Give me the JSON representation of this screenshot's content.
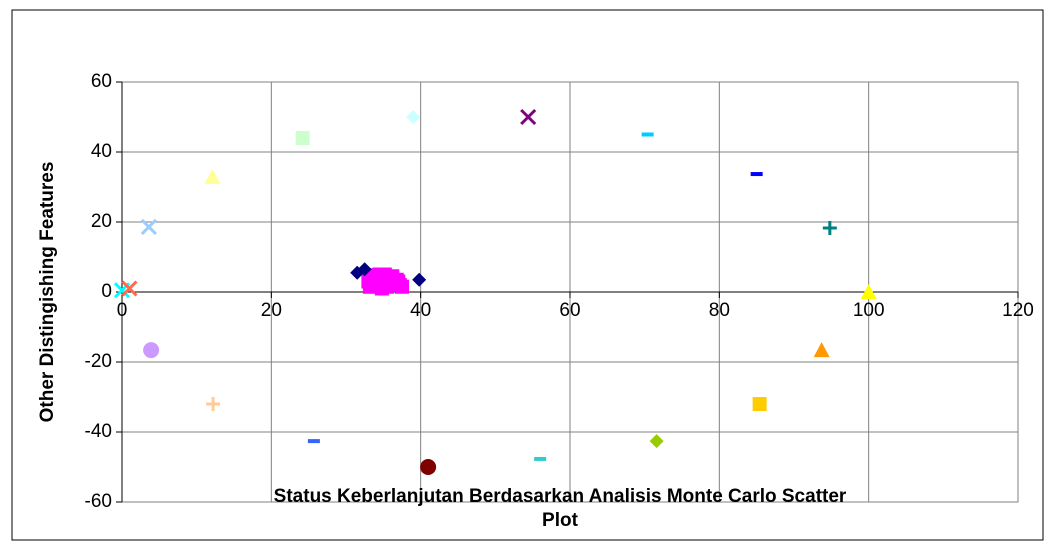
{
  "chart_data": {
    "type": "scatter",
    "x_label": "Status Keberlanjutan Berdasarkan Analisis Monte Carlo Scatter Plot",
    "y_label": "Other Distingishing Features",
    "xlim": [
      0,
      120
    ],
    "xticks": [
      0,
      20,
      40,
      60,
      80,
      100,
      120
    ],
    "ylim": [
      -60,
      60
    ],
    "yticks": [
      -60,
      -40,
      -20,
      0,
      20,
      40,
      60
    ],
    "grid": true,
    "series": [
      {
        "color": "#ff00ff",
        "marker": "square",
        "x": [
          33,
          33.5,
          34,
          34.5,
          35,
          35.5,
          36,
          36.5,
          37,
          37.5,
          33.2,
          34.2,
          35.2,
          36.2,
          37.2,
          34.8,
          35.8,
          36.8,
          33.8,
          35.4
        ],
        "y": [
          3,
          4.5,
          2,
          5,
          3.5,
          1.5,
          4,
          2.5,
          3,
          1.5,
          1.5,
          3.5,
          5,
          4.5,
          2,
          1,
          2.5,
          3.5,
          4.8,
          3
        ]
      },
      {
        "color": "#000080",
        "marker": "diamond",
        "x": [
          31.5,
          32.5,
          39.8
        ],
        "y": [
          5.5,
          6.5,
          3.5
        ]
      },
      {
        "color": "#00ffff",
        "marker": "x",
        "x": [
          0
        ],
        "y": [
          0.5
        ]
      },
      {
        "color": "#ff6a4d",
        "marker": "x",
        "x": [
          1
        ],
        "y": [
          1
        ]
      },
      {
        "color": "#99ccff",
        "marker": "x",
        "x": [
          3.6
        ],
        "y": [
          18.6
        ]
      },
      {
        "color": "#cc99ff",
        "marker": "circle",
        "x": [
          3.9
        ],
        "y": [
          -16.6
        ]
      },
      {
        "color": "#ffff99",
        "marker": "triangle",
        "x": [
          12.1
        ],
        "y": [
          32.9
        ]
      },
      {
        "color": "#ccffcc",
        "marker": "square",
        "x": [
          24.2
        ],
        "y": [
          44
        ]
      },
      {
        "color": "#ccffff",
        "marker": "diamond",
        "x": [
          39
        ],
        "y": [
          50
        ]
      },
      {
        "color": "#800080",
        "marker": "x",
        "x": [
          54.4
        ],
        "y": [
          50
        ]
      },
      {
        "color": "#00ccff",
        "marker": "dash",
        "x": [
          70.4
        ],
        "y": [
          45
        ]
      },
      {
        "color": "#0000ff",
        "marker": "dash",
        "x": [
          85
        ],
        "y": [
          33.7
        ]
      },
      {
        "color": "#008080",
        "marker": "plus",
        "x": [
          94.8
        ],
        "y": [
          18.3
        ]
      },
      {
        "color": "#ffff00",
        "marker": "triangle",
        "x": [
          100
        ],
        "y": [
          0
        ]
      },
      {
        "color": "#ff9900",
        "marker": "triangle",
        "x": [
          93.7
        ],
        "y": [
          -16.6
        ]
      },
      {
        "color": "#ffcc00",
        "marker": "square",
        "x": [
          85.4
        ],
        "y": [
          -32
        ]
      },
      {
        "color": "#99cc00",
        "marker": "diamond",
        "x": [
          71.6
        ],
        "y": [
          -42.6
        ]
      },
      {
        "color": "#33cccc",
        "marker": "dash",
        "x": [
          56
        ],
        "y": [
          -47.7
        ]
      },
      {
        "color": "#800000",
        "marker": "circle",
        "x": [
          41
        ],
        "y": [
          -50
        ]
      },
      {
        "color": "#3366ff",
        "marker": "dash",
        "x": [
          25.7
        ],
        "y": [
          -42.6
        ]
      },
      {
        "color": "#ffcc99",
        "marker": "plus",
        "x": [
          12.2
        ],
        "y": [
          -32
        ]
      }
    ]
  }
}
